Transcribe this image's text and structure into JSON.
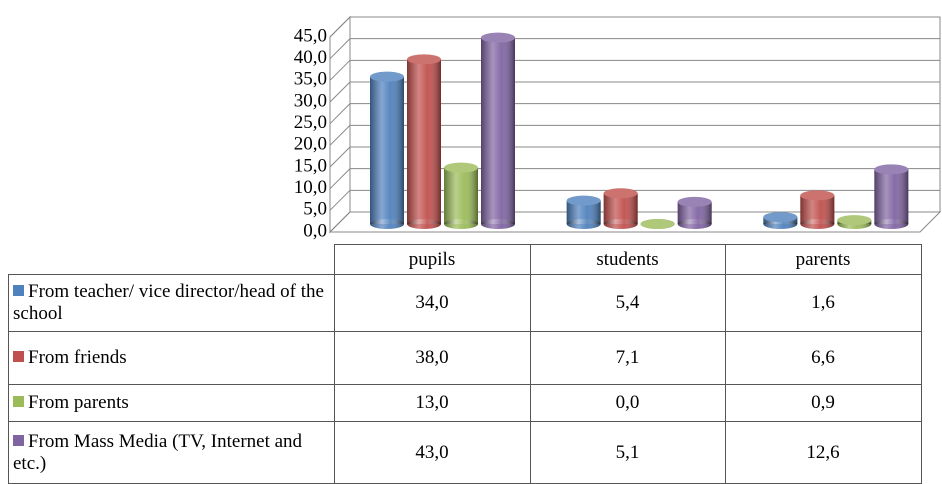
{
  "chart_data": {
    "type": "bar3d",
    "categories": [
      "pupils",
      "students",
      "parents"
    ],
    "ylim": [
      0,
      45
    ],
    "yticks": [
      {
        "value": 0,
        "label": "0,0"
      },
      {
        "value": 5,
        "label": "5,0"
      },
      {
        "value": 10,
        "label": "10,0"
      },
      {
        "value": 15,
        "label": "15,0"
      },
      {
        "value": 20,
        "label": "20,0"
      },
      {
        "value": 25,
        "label": "25,0"
      },
      {
        "value": 30,
        "label": "30,0"
      },
      {
        "value": 35,
        "label": "35,0"
      },
      {
        "value": 40,
        "label": "40,0"
      },
      {
        "value": 45,
        "label": "45,0"
      }
    ],
    "grid": true,
    "series": [
      {
        "name": "From teacher/ vice director/head of the school",
        "color": "#4f81bd",
        "values": [
          34.0,
          5.4,
          1.6
        ],
        "value_labels": [
          "34,0",
          "5,4",
          "1,6"
        ]
      },
      {
        "name": "From friends",
        "color": "#c0504d",
        "values": [
          38.0,
          7.1,
          6.6
        ],
        "value_labels": [
          "38,0",
          "7,1",
          "6,6"
        ]
      },
      {
        "name": "From parents",
        "color": "#9bbb59",
        "values": [
          13.0,
          0.0,
          0.9
        ],
        "value_labels": [
          "13,0",
          "0,0",
          "0,9"
        ]
      },
      {
        "name": "From Mass Media (TV, Internet and etc.)",
        "color": "#8064a2",
        "values": [
          43.0,
          5.1,
          12.6
        ],
        "value_labels": [
          "43,0",
          "5,1",
          "12,6"
        ]
      }
    ]
  }
}
